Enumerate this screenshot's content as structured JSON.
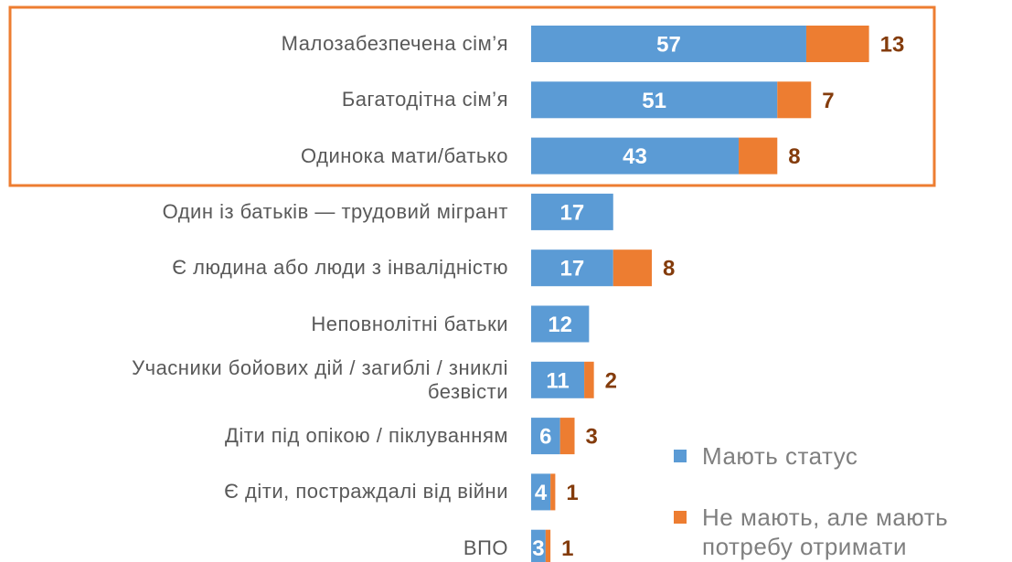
{
  "chart_data": {
    "type": "bar",
    "orientation": "horizontal",
    "stacked": true,
    "categories": [
      "Малозабезпечена сім’я",
      "Багатодітна сім’я",
      "Одинока мати/батько",
      "Один із батьків — трудовий мігрант",
      "Є людина або люди з інвалідністю",
      "Неповнолітні батьки",
      "Учасники бойових дій / загиблі / зниклі безвісти",
      "Діти під опікою / піклуванням",
      "Є діти, постраждалі від війни",
      "ВПО"
    ],
    "series": [
      {
        "name": "Мають статус",
        "color": "#5b9bd5",
        "values": [
          57,
          51,
          43,
          17,
          17,
          12,
          11,
          6,
          4,
          3
        ]
      },
      {
        "name": "Не мають, але мають потребу отримати",
        "color": "#ed7d31",
        "values": [
          13,
          7,
          8,
          null,
          8,
          null,
          2,
          3,
          1,
          1
        ]
      }
    ]
  }
}
